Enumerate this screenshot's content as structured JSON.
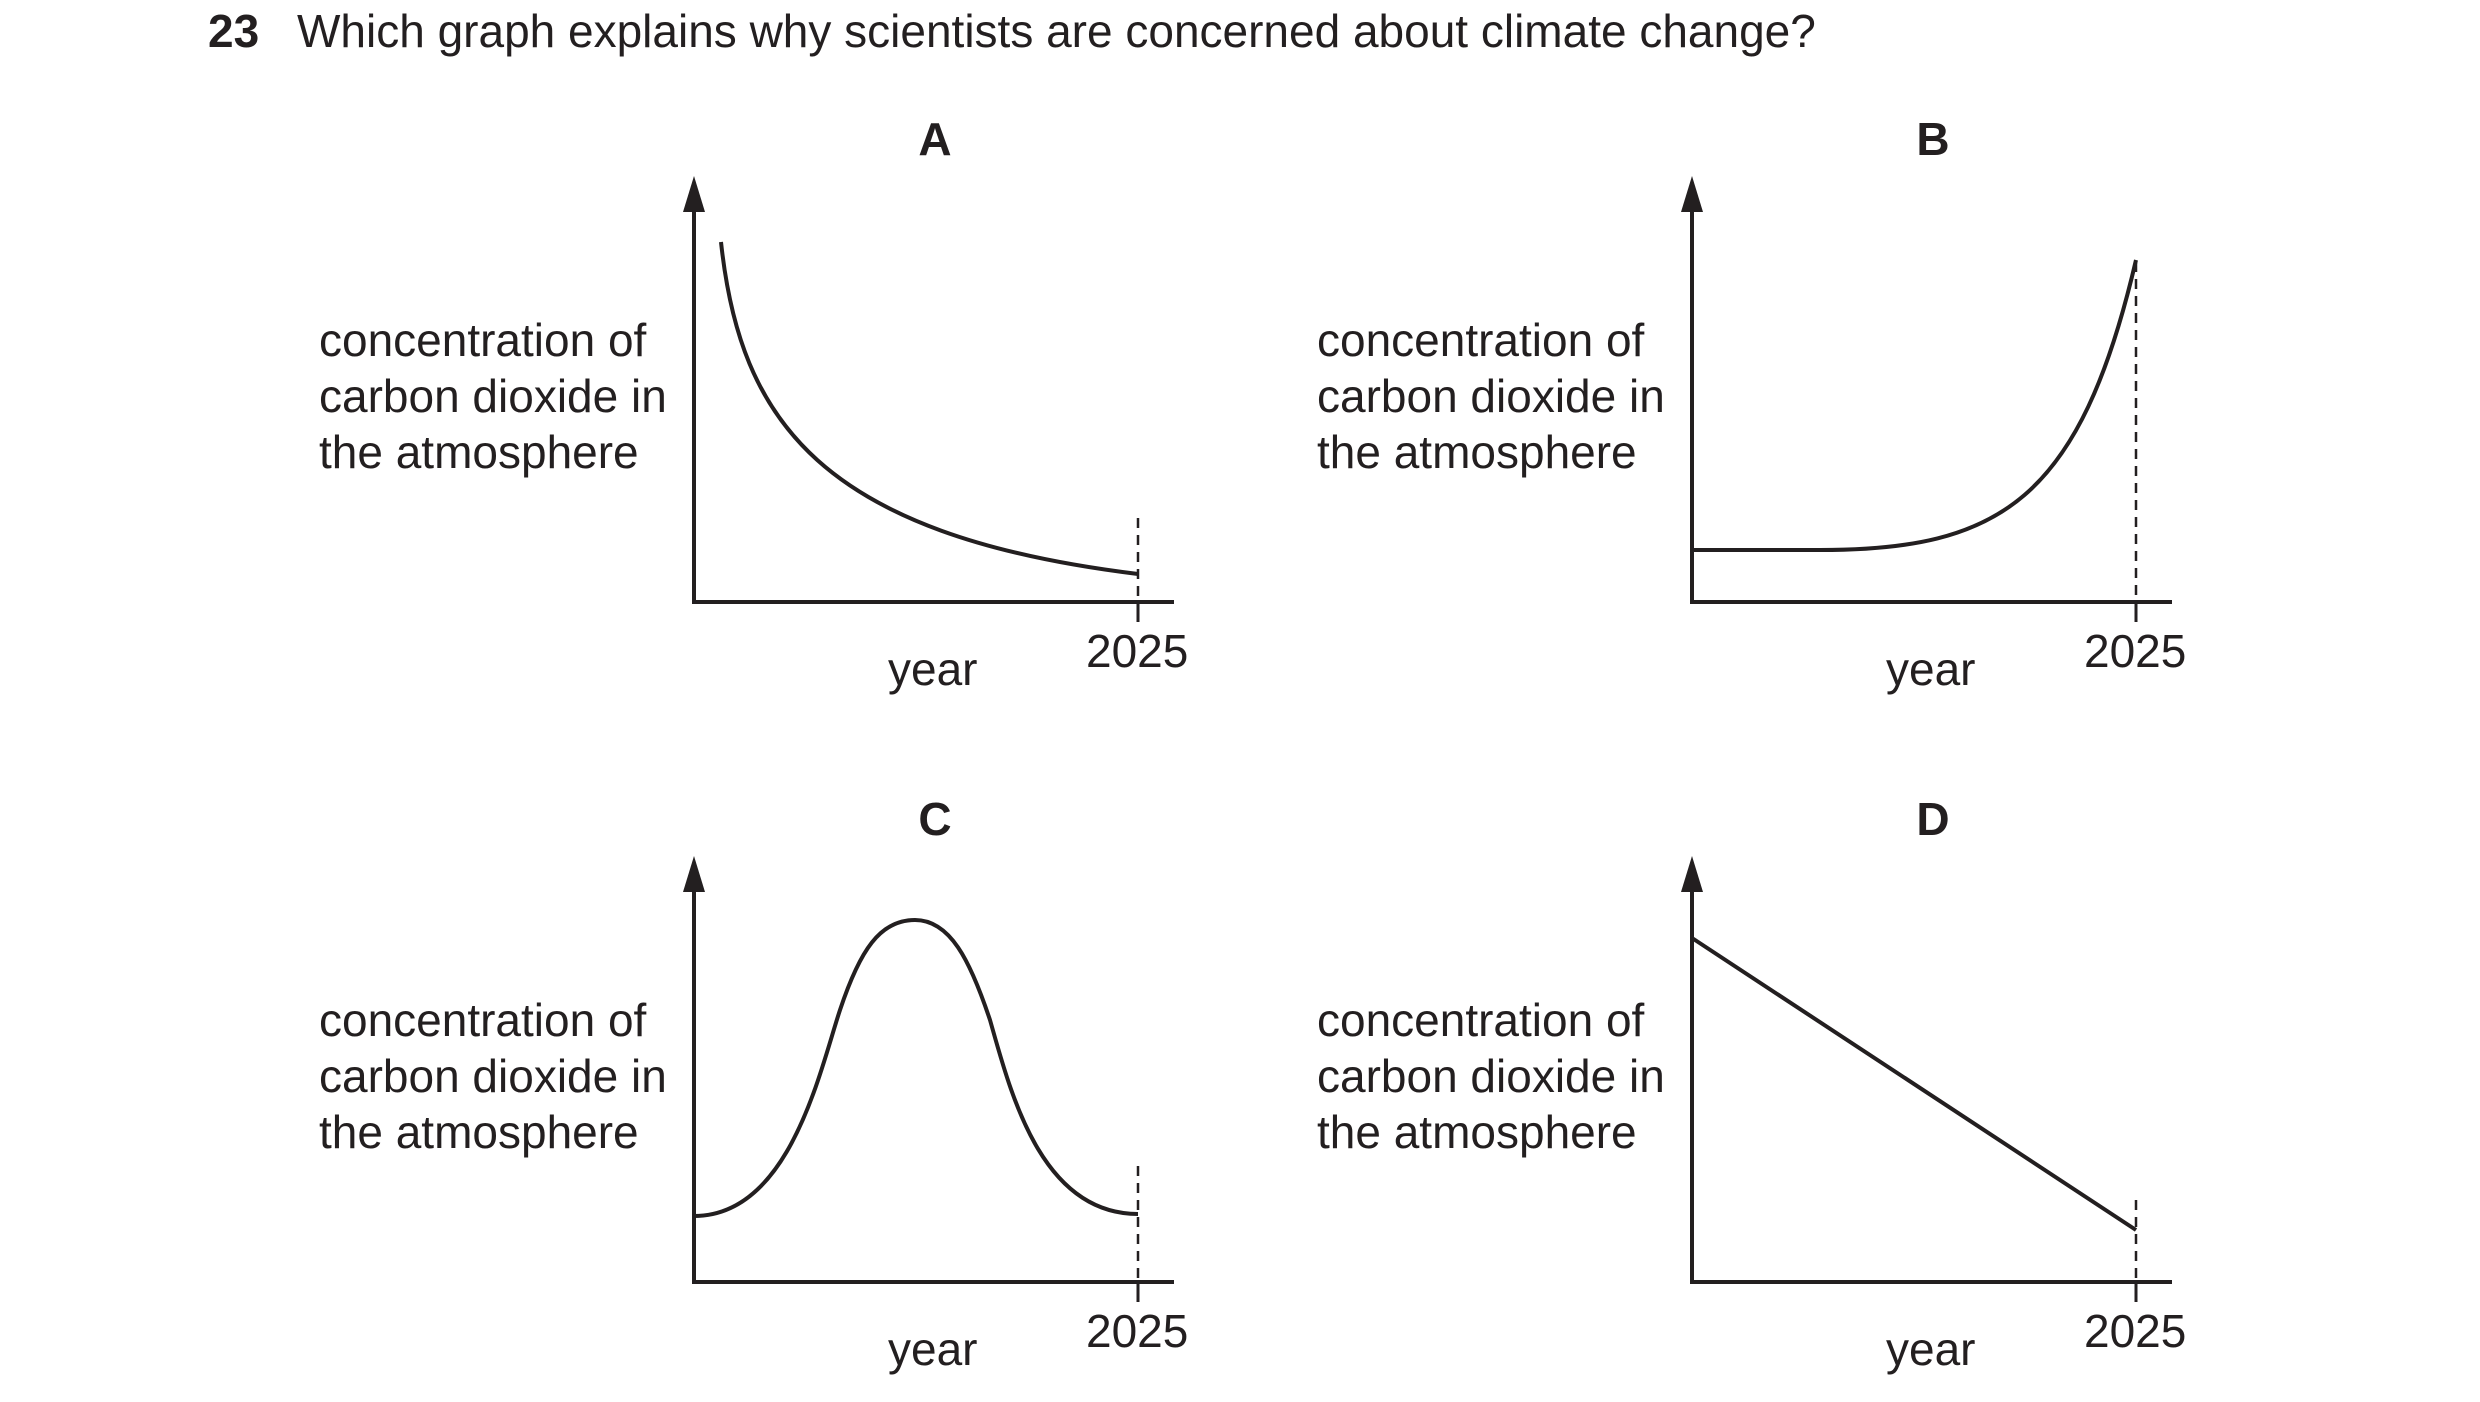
{
  "question": {
    "number": "23",
    "text": "Which graph explains why scientists are concerned about climate change?"
  },
  "graphs": [
    {
      "letter": "A",
      "ylabel_lines": [
        "concentration of",
        "carbon dioxide in",
        "the atmosphere"
      ],
      "xlabel": "year",
      "tick": "2025",
      "shape": "decreasing curve"
    },
    {
      "letter": "B",
      "ylabel_lines": [
        "concentration of",
        "carbon dioxide in",
        "the atmosphere"
      ],
      "xlabel": "year",
      "tick": "2025",
      "shape": "flat then rising curve"
    },
    {
      "letter": "C",
      "ylabel_lines": [
        "concentration of",
        "carbon dioxide in",
        "the atmosphere"
      ],
      "xlabel": "year",
      "tick": "2025",
      "shape": "rise then fall peak"
    },
    {
      "letter": "D",
      "ylabel_lines": [
        "concentration of",
        "carbon dioxide in",
        "the atmosphere"
      ],
      "xlabel": "year",
      "tick": "2025",
      "shape": "straight decreasing line"
    }
  ],
  "colors": {
    "ink": "#231f20"
  }
}
